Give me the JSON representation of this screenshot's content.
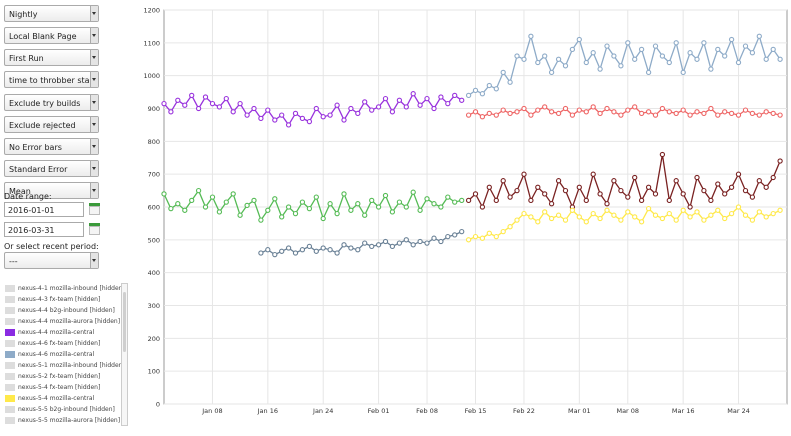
{
  "controls": {
    "dropdowns": [
      "Nightly",
      "Local Blank Page",
      "First Run",
      "time to throbber start",
      "Exclude try builds",
      "Exclude rejected results",
      "No Error bars",
      "Standard Error",
      "Mean"
    ],
    "date_range_label": "Date range:",
    "start_date": "2016-01-01",
    "end_date": "2016-03-31",
    "period_label": "Or select recent period:",
    "period_value": "---"
  },
  "legend": [
    {
      "label": "nexus-4-1 mozilla-inbound [hidden]",
      "color": "#dddddd"
    },
    {
      "label": "nexus-4-3 fx-team [hidden]",
      "color": "#dddddd"
    },
    {
      "label": "nexus-4-4 b2g-inbound [hidden]",
      "color": "#dddddd"
    },
    {
      "label": "nexus-4-4 mozilla-aurora [hidden]",
      "color": "#dddddd"
    },
    {
      "label": "nexus-4-4 mozilla-central",
      "color": "#8a2be2"
    },
    {
      "label": "nexus-4-6 fx-team [hidden]",
      "color": "#dddddd"
    },
    {
      "label": "nexus-4-6 mozilla-central",
      "color": "#8eabc8"
    },
    {
      "label": "nexus-5-1 mozilla-inbound [hidden]",
      "color": "#dddddd"
    },
    {
      "label": "nexus-5-2 fx-team [hidden]",
      "color": "#dddddd"
    },
    {
      "label": "nexus-5-4 fx-team [hidden]",
      "color": "#dddddd"
    },
    {
      "label": "nexus-5-4 mozilla-central",
      "color": "#ffe94a"
    },
    {
      "label": "nexus-5-5 b2g-inbound [hidden]",
      "color": "#dddddd"
    },
    {
      "label": "nexus-5-5 mozilla-aurora [hidden]",
      "color": "#dddddd"
    }
  ],
  "chart_data": {
    "type": "line",
    "x_type": "date",
    "xlim": [
      "2016-01-01",
      "2016-03-31"
    ],
    "ylim": [
      0,
      1200
    ],
    "yticks": [
      0,
      100,
      200,
      300,
      400,
      500,
      600,
      700,
      800,
      900,
      1000,
      1100,
      1200
    ],
    "xtick_labels": [
      "Jan 08",
      "Jan 16",
      "Jan 24",
      "Feb 01",
      "Feb 08",
      "Feb 15",
      "Feb 22",
      "Mar 01",
      "Mar 08",
      "Mar 16",
      "Mar 24"
    ],
    "grid": true,
    "series": [
      {
        "color": "#9933dd",
        "x": [
          "2016-01-01",
          "2016-01-02",
          "2016-01-03",
          "2016-01-04",
          "2016-01-05",
          "2016-01-06",
          "2016-01-07",
          "2016-01-08",
          "2016-01-09",
          "2016-01-10",
          "2016-01-11",
          "2016-01-12",
          "2016-01-13",
          "2016-01-14",
          "2016-01-15",
          "2016-01-16",
          "2016-01-17",
          "2016-01-18",
          "2016-01-19",
          "2016-01-20",
          "2016-01-21",
          "2016-01-22",
          "2016-01-23",
          "2016-01-24",
          "2016-01-25",
          "2016-01-26",
          "2016-01-27",
          "2016-01-28",
          "2016-01-29",
          "2016-01-30",
          "2016-01-31",
          "2016-02-01",
          "2016-02-02",
          "2016-02-03",
          "2016-02-04",
          "2016-02-05",
          "2016-02-06",
          "2016-02-07",
          "2016-02-08",
          "2016-02-09",
          "2016-02-10",
          "2016-02-11",
          "2016-02-12",
          "2016-02-13"
        ],
        "y": [
          915,
          890,
          925,
          910,
          940,
          900,
          935,
          915,
          905,
          930,
          890,
          915,
          880,
          900,
          870,
          895,
          865,
          880,
          850,
          885,
          870,
          860,
          900,
          875,
          880,
          910,
          865,
          900,
          885,
          920,
          895,
          905,
          930,
          890,
          925,
          905,
          945,
          910,
          930,
          900,
          935,
          915,
          940,
          925
        ]
      },
      {
        "color": "#55bb55",
        "x": [
          "2016-01-01",
          "2016-01-02",
          "2016-01-03",
          "2016-01-04",
          "2016-01-05",
          "2016-01-06",
          "2016-01-07",
          "2016-01-08",
          "2016-01-09",
          "2016-01-10",
          "2016-01-11",
          "2016-01-12",
          "2016-01-13",
          "2016-01-14",
          "2016-01-15",
          "2016-01-16",
          "2016-01-17",
          "2016-01-18",
          "2016-01-19",
          "2016-01-20",
          "2016-01-21",
          "2016-01-22",
          "2016-01-23",
          "2016-01-24",
          "2016-01-25",
          "2016-01-26",
          "2016-01-27",
          "2016-01-28",
          "2016-01-29",
          "2016-01-30",
          "2016-01-31",
          "2016-02-01",
          "2016-02-02",
          "2016-02-03",
          "2016-02-04",
          "2016-02-05",
          "2016-02-06",
          "2016-02-07",
          "2016-02-08",
          "2016-02-09",
          "2016-02-10",
          "2016-02-11",
          "2016-02-12",
          "2016-02-13"
        ],
        "y": [
          640,
          595,
          610,
          590,
          620,
          650,
          600,
          630,
          585,
          615,
          640,
          575,
          605,
          620,
          560,
          590,
          625,
          570,
          600,
          580,
          615,
          595,
          630,
          565,
          610,
          580,
          640,
          590,
          610,
          575,
          620,
          600,
          635,
          585,
          615,
          600,
          645,
          590,
          625,
          610,
          600,
          630,
          615,
          620
        ]
      },
      {
        "color": "#6a8196",
        "x": [
          "2016-01-15",
          "2016-01-16",
          "2016-01-17",
          "2016-01-18",
          "2016-01-19",
          "2016-01-20",
          "2016-01-21",
          "2016-01-22",
          "2016-01-23",
          "2016-01-24",
          "2016-01-25",
          "2016-01-26",
          "2016-01-27",
          "2016-01-28",
          "2016-01-29",
          "2016-01-30",
          "2016-01-31",
          "2016-02-01",
          "2016-02-02",
          "2016-02-03",
          "2016-02-04",
          "2016-02-05",
          "2016-02-06",
          "2016-02-07",
          "2016-02-08",
          "2016-02-09",
          "2016-02-10",
          "2016-02-11",
          "2016-02-12",
          "2016-02-13"
        ],
        "y": [
          460,
          470,
          455,
          465,
          475,
          460,
          470,
          480,
          465,
          475,
          470,
          460,
          485,
          475,
          470,
          490,
          480,
          485,
          495,
          480,
          490,
          500,
          485,
          495,
          490,
          505,
          495,
          510,
          515,
          525
        ]
      },
      {
        "color": "#8eabc8",
        "x": [
          "2016-02-14",
          "2016-02-15",
          "2016-02-16",
          "2016-02-17",
          "2016-02-18",
          "2016-02-19",
          "2016-02-20",
          "2016-02-21",
          "2016-02-22",
          "2016-02-23",
          "2016-02-24",
          "2016-02-25",
          "2016-02-26",
          "2016-02-27",
          "2016-02-28",
          "2016-02-29",
          "2016-03-01",
          "2016-03-02",
          "2016-03-03",
          "2016-03-04",
          "2016-03-05",
          "2016-03-06",
          "2016-03-07",
          "2016-03-08",
          "2016-03-09",
          "2016-03-10",
          "2016-03-11",
          "2016-03-12",
          "2016-03-13",
          "2016-03-14",
          "2016-03-15",
          "2016-03-16",
          "2016-03-17",
          "2016-03-18",
          "2016-03-19",
          "2016-03-20",
          "2016-03-21",
          "2016-03-22",
          "2016-03-23",
          "2016-03-24",
          "2016-03-25",
          "2016-03-26",
          "2016-03-27",
          "2016-03-28",
          "2016-03-29",
          "2016-03-30"
        ],
        "y": [
          940,
          955,
          945,
          970,
          960,
          1010,
          980,
          1060,
          1050,
          1120,
          1040,
          1060,
          1010,
          1050,
          1030,
          1080,
          1110,
          1040,
          1070,
          1020,
          1090,
          1060,
          1030,
          1100,
          1050,
          1080,
          1010,
          1090,
          1060,
          1040,
          1100,
          1010,
          1070,
          1050,
          1100,
          1020,
          1080,
          1060,
          1110,
          1040,
          1090,
          1070,
          1120,
          1050,
          1080,
          1050
        ]
      },
      {
        "color": "#ee6666",
        "x": [
          "2016-02-14",
          "2016-02-15",
          "2016-02-16",
          "2016-02-17",
          "2016-02-18",
          "2016-02-19",
          "2016-02-20",
          "2016-02-21",
          "2016-02-22",
          "2016-02-23",
          "2016-02-24",
          "2016-02-25",
          "2016-02-26",
          "2016-02-27",
          "2016-02-28",
          "2016-02-29",
          "2016-03-01",
          "2016-03-02",
          "2016-03-03",
          "2016-03-04",
          "2016-03-05",
          "2016-03-06",
          "2016-03-07",
          "2016-03-08",
          "2016-03-09",
          "2016-03-10",
          "2016-03-11",
          "2016-03-12",
          "2016-03-13",
          "2016-03-14",
          "2016-03-15",
          "2016-03-16",
          "2016-03-17",
          "2016-03-18",
          "2016-03-19",
          "2016-03-20",
          "2016-03-21",
          "2016-03-22",
          "2016-03-23",
          "2016-03-24",
          "2016-03-25",
          "2016-03-26",
          "2016-03-27",
          "2016-03-28",
          "2016-03-29",
          "2016-03-30"
        ],
        "y": [
          880,
          890,
          875,
          885,
          880,
          895,
          885,
          890,
          900,
          880,
          895,
          905,
          890,
          885,
          900,
          880,
          895,
          890,
          905,
          885,
          900,
          890,
          880,
          895,
          905,
          885,
          890,
          880,
          900,
          890,
          885,
          895,
          880,
          890,
          885,
          900,
          880,
          890,
          885,
          880,
          895,
          885,
          880,
          890,
          885,
          880
        ]
      },
      {
        "color": "#7a2222",
        "x": [
          "2016-02-14",
          "2016-02-15",
          "2016-02-16",
          "2016-02-17",
          "2016-02-18",
          "2016-02-19",
          "2016-02-20",
          "2016-02-21",
          "2016-02-22",
          "2016-02-23",
          "2016-02-24",
          "2016-02-25",
          "2016-02-26",
          "2016-02-27",
          "2016-02-28",
          "2016-02-29",
          "2016-03-01",
          "2016-03-02",
          "2016-03-03",
          "2016-03-04",
          "2016-03-05",
          "2016-03-06",
          "2016-03-07",
          "2016-03-08",
          "2016-03-09",
          "2016-03-10",
          "2016-03-11",
          "2016-03-12",
          "2016-03-13",
          "2016-03-14",
          "2016-03-15",
          "2016-03-16",
          "2016-03-17",
          "2016-03-18",
          "2016-03-19",
          "2016-03-20",
          "2016-03-21",
          "2016-03-22",
          "2016-03-23",
          "2016-03-24",
          "2016-03-25",
          "2016-03-26",
          "2016-03-27",
          "2016-03-28",
          "2016-03-29",
          "2016-03-30"
        ],
        "y": [
          620,
          640,
          600,
          660,
          620,
          680,
          630,
          650,
          700,
          620,
          660,
          640,
          610,
          680,
          650,
          600,
          660,
          620,
          700,
          640,
          610,
          680,
          650,
          630,
          690,
          620,
          660,
          640,
          760,
          620,
          680,
          640,
          600,
          690,
          650,
          620,
          670,
          640,
          660,
          700,
          650,
          630,
          680,
          660,
          690,
          740
        ]
      },
      {
        "color": "#ffe94a",
        "x": [
          "2016-02-14",
          "2016-02-15",
          "2016-02-16",
          "2016-02-17",
          "2016-02-18",
          "2016-02-19",
          "2016-02-20",
          "2016-02-21",
          "2016-02-22",
          "2016-02-23",
          "2016-02-24",
          "2016-02-25",
          "2016-02-26",
          "2016-02-27",
          "2016-02-28",
          "2016-02-29",
          "2016-03-01",
          "2016-03-02",
          "2016-03-03",
          "2016-03-04",
          "2016-03-05",
          "2016-03-06",
          "2016-03-07",
          "2016-03-08",
          "2016-03-09",
          "2016-03-10",
          "2016-03-11",
          "2016-03-12",
          "2016-03-13",
          "2016-03-14",
          "2016-03-15",
          "2016-03-16",
          "2016-03-17",
          "2016-03-18",
          "2016-03-19",
          "2016-03-20",
          "2016-03-21",
          "2016-03-22",
          "2016-03-23",
          "2016-03-24",
          "2016-03-25",
          "2016-03-26",
          "2016-03-27",
          "2016-03-28",
          "2016-03-29",
          "2016-03-30"
        ],
        "y": [
          500,
          510,
          505,
          520,
          510,
          525,
          540,
          560,
          580,
          570,
          555,
          585,
          565,
          575,
          560,
          590,
          570,
          555,
          580,
          565,
          590,
          575,
          560,
          585,
          570,
          555,
          595,
          575,
          565,
          580,
          560,
          590,
          570,
          585,
          560,
          575,
          590,
          565,
          580,
          600,
          575,
          560,
          585,
          570,
          580,
          590
        ]
      }
    ]
  }
}
